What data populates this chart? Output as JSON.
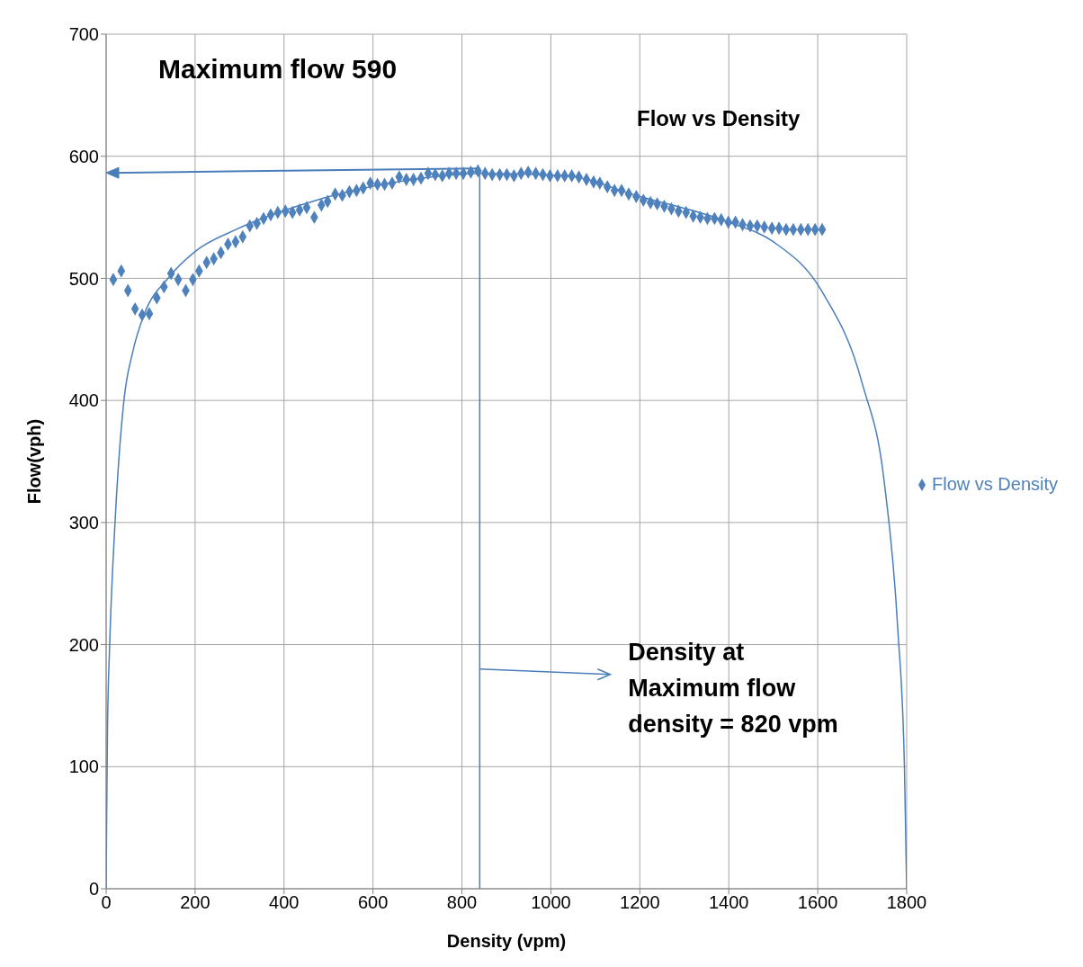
{
  "chart_data": {
    "type": "scatter",
    "title": "Flow vs Density",
    "xlabel": "Density (vpm)",
    "ylabel": "Flow(vph)",
    "xlim": [
      0,
      1800
    ],
    "xticks": [
      0,
      200,
      400,
      600,
      800,
      1000,
      1200,
      1400,
      1600,
      1800
    ],
    "ylim": [
      0,
      700
    ],
    "yticks": [
      0,
      100,
      200,
      300,
      400,
      500,
      600,
      700
    ],
    "grid": true,
    "legend": "right",
    "marker": "diamond",
    "series": [
      {
        "name": "Flow vs Density",
        "color": "#4f81bd",
        "x": [
          16,
          34,
          49,
          65,
          81,
          97,
          114,
          130,
          146,
          162,
          179,
          195,
          209,
          226,
          242,
          258,
          274,
          291,
          307,
          323,
          339,
          354,
          370,
          386,
          403,
          419,
          435,
          451,
          468,
          484,
          498,
          515,
          531,
          547,
          563,
          578,
          594,
          610,
          626,
          643,
          659,
          675,
          691,
          708,
          724,
          740,
          756,
          771,
          787,
          803,
          820,
          836,
          852,
          868,
          885,
          901,
          917,
          933,
          949,
          966,
          982,
          998,
          1015,
          1031,
          1047,
          1063,
          1080,
          1096,
          1110,
          1127,
          1143,
          1159,
          1175,
          1192,
          1208,
          1224,
          1239,
          1255,
          1271,
          1287,
          1304,
          1320,
          1336,
          1352,
          1368,
          1383,
          1399,
          1415,
          1431,
          1448,
          1464,
          1480,
          1497,
          1513,
          1529,
          1545,
          1562,
          1578,
          1594,
          1610
        ],
        "values": [
          499,
          506,
          490,
          475,
          470,
          471,
          484,
          493,
          504,
          499,
          490,
          499,
          506,
          513,
          516,
          521,
          528,
          530,
          534,
          543,
          545,
          549,
          552,
          554,
          555,
          554,
          556,
          558,
          550,
          560,
          563,
          569,
          568,
          571,
          572,
          574,
          578,
          577,
          577,
          578,
          583,
          581,
          581,
          582,
          586,
          585,
          584,
          586,
          586,
          586,
          587,
          588,
          586,
          585,
          585,
          585,
          584,
          586,
          587,
          586,
          585,
          584,
          584,
          584,
          584,
          583,
          581,
          579,
          578,
          575,
          572,
          572,
          569,
          567,
          564,
          562,
          561,
          559,
          557,
          555,
          554,
          551,
          550,
          549,
          549,
          548,
          546,
          546,
          544,
          543,
          543,
          542,
          541,
          541,
          540,
          540,
          540,
          540,
          540,
          540
        ]
      },
      {
        "type": "line",
        "color": "#4a7ebb",
        "marker": "none",
        "line_style": "solid",
        "x": [
          0,
          1,
          3,
          8,
          20,
          40,
          60,
          85,
          139,
          200,
          292,
          437,
          672,
          850,
          1033,
          1200,
          1400,
          1500,
          1610,
          1700,
          1750,
          1780,
          1795,
          1800
        ],
        "values": [
          0,
          50,
          130,
          200,
          300,
          400,
          440,
          470,
          500,
          522,
          540,
          560,
          580,
          586,
          584,
          567,
          546,
          530,
          489,
          414,
          332,
          213,
          100,
          0
        ]
      }
    ],
    "ref_lines": [
      {
        "axis": "x",
        "value": 840,
        "color": "#4a7ebb"
      }
    ],
    "annotations": [
      "Maximum flow 590",
      {
        "text": "Density at Maximum flow density = 820 vpm",
        "x": 840,
        "y": 180
      }
    ]
  }
}
